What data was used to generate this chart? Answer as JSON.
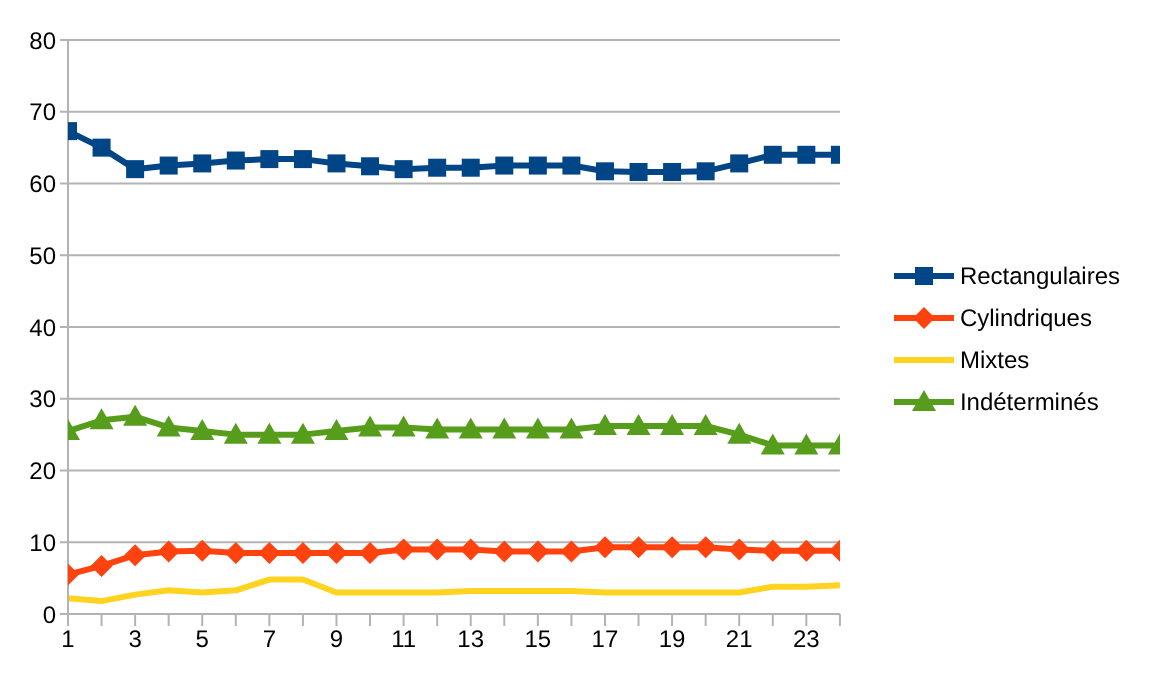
{
  "chart_data": {
    "type": "line",
    "x": [
      1,
      2,
      3,
      4,
      5,
      6,
      7,
      8,
      9,
      10,
      11,
      12,
      13,
      14,
      15,
      16,
      17,
      18,
      19,
      20,
      21,
      22,
      23,
      24
    ],
    "xlim": [
      1,
      24
    ],
    "xticks": [
      1,
      {
        "value": 2,
        "label": null
      },
      3,
      {
        "value": 4,
        "label": null
      },
      5,
      {
        "value": 6,
        "label": null
      },
      7,
      {
        "value": 8,
        "label": null
      },
      9,
      {
        "value": 10,
        "label": null
      },
      11,
      {
        "value": 12,
        "label": null
      },
      13,
      {
        "value": 14,
        "label": null
      },
      15,
      {
        "value": 16,
        "label": null
      },
      17,
      {
        "value": 18,
        "label": null
      },
      19,
      {
        "value": 20,
        "label": null
      },
      21,
      {
        "value": 22,
        "label": null
      },
      23,
      {
        "value": 24,
        "label": null
      }
    ],
    "ylim": [
      0,
      80
    ],
    "yticks": [
      0,
      10,
      20,
      30,
      40,
      50,
      60,
      70,
      80
    ],
    "grid": "y",
    "legend": "right",
    "series": [
      {
        "name": "Rectangulaires",
        "color": "#004586",
        "marker": "square",
        "values": [
          67.3,
          65,
          62,
          62.5,
          62.8,
          63.2,
          63.4,
          63.4,
          62.8,
          62.4,
          62,
          62.2,
          62.2,
          62.5,
          62.5,
          62.5,
          61.7,
          61.6,
          61.6,
          61.7,
          62.8,
          64,
          64,
          64
        ]
      },
      {
        "name": "Cylindriques",
        "color": "#ff420e",
        "marker": "diamond",
        "values": [
          5.5,
          6.7,
          8.2,
          8.7,
          8.8,
          8.5,
          8.5,
          8.5,
          8.5,
          8.5,
          9,
          9,
          9,
          8.7,
          8.7,
          8.7,
          9.3,
          9.3,
          9.3,
          9.3,
          9,
          8.8,
          8.8,
          8.8
        ]
      },
      {
        "name": "Mixtes",
        "color": "#ffd320",
        "marker": "none",
        "values": [
          2.2,
          1.8,
          2.7,
          3.3,
          3,
          3.3,
          4.8,
          4.8,
          3,
          3,
          3,
          3,
          3.2,
          3.2,
          3.2,
          3.2,
          3,
          3,
          3,
          3,
          3,
          3.8,
          3.8,
          4
        ]
      },
      {
        "name": "Indéterminés",
        "color": "#579d1c",
        "marker": "triangle",
        "values": [
          25.5,
          27,
          27.5,
          26,
          25.5,
          25,
          25,
          25,
          25.5,
          26,
          26,
          25.7,
          25.7,
          25.7,
          25.7,
          25.7,
          26.2,
          26.2,
          26.2,
          26.2,
          25,
          23.5,
          23.5,
          23.5
        ]
      }
    ]
  }
}
